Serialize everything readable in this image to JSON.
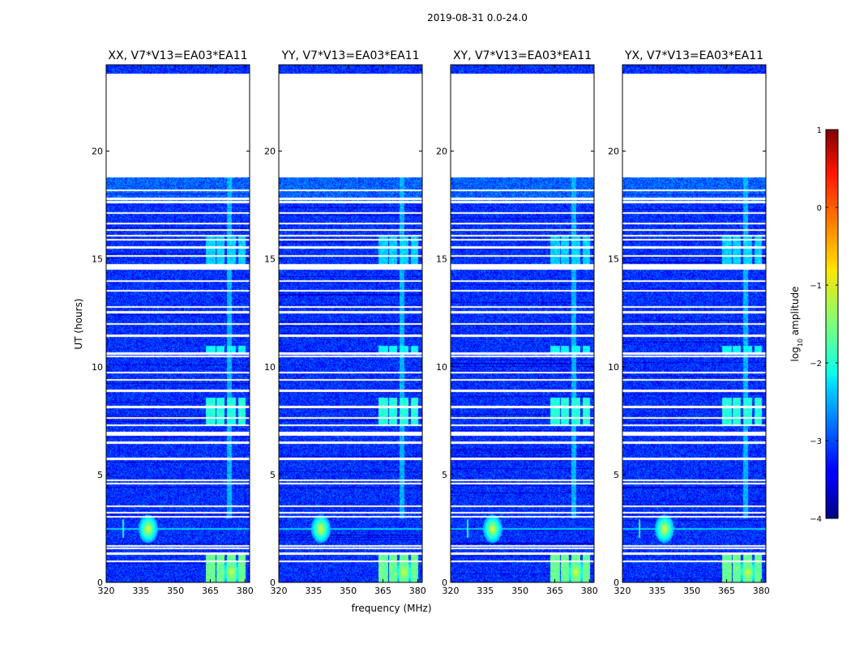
{
  "chart_data": {
    "type": "heatmap",
    "suptitle": "2019-08-31 0.0-24.0",
    "xlabel": "frequency (MHz)",
    "ylabel": "UT (hours)",
    "xlim": [
      320,
      382
    ],
    "ylim": [
      0,
      24
    ],
    "x_ticks": [
      "320",
      "335",
      "350",
      "365",
      "380"
    ],
    "x_tick_values": [
      320,
      335,
      350,
      365,
      380
    ],
    "y_ticks": [
      "0",
      "5",
      "10",
      "15",
      "20"
    ],
    "y_tick_values": [
      0,
      5,
      10,
      15,
      20
    ],
    "colormap": "jet",
    "colorbar": {
      "label": "log10 amplitude",
      "label_main": "log",
      "label_sub": "10",
      "label_rest": " amplitude",
      "range": [
        -4,
        1
      ],
      "tick_values": [
        1,
        0,
        -1,
        -2,
        -3,
        -4
      ],
      "ticks": [
        "1",
        "0",
        "−1",
        "−2",
        "−3",
        "−4"
      ]
    },
    "panels": [
      {
        "title": "XX, V7*V13=EA03*EA11",
        "pol": "XX",
        "cross": false
      },
      {
        "title": "YY, V7*V13=EA03*EA11",
        "pol": "YY",
        "cross": false
      },
      {
        "title": "XY, V7*V13=EA03*EA11",
        "pol": "XY",
        "cross": true
      },
      {
        "title": "YX, V7*V13=EA03*EA11",
        "pol": "YX",
        "cross": true
      }
    ],
    "data_gap_hours": [
      18.8,
      23.6
    ],
    "flagged_hours": [
      1.0,
      1.35,
      1.6,
      1.7,
      3.05,
      3.25,
      3.55,
      4.6,
      4.75,
      5.75,
      6.5,
      6.85,
      6.95,
      7.3,
      7.65,
      8.15,
      8.9,
      9.4,
      9.75,
      10.5,
      10.6,
      10.65,
      11.45,
      12.0,
      12.55,
      12.8,
      13.55,
      14.0,
      14.55,
      14.65,
      14.75,
      15.15,
      15.55,
      15.9,
      16.1,
      16.35,
      16.65,
      17.15,
      17.65,
      17.8,
      18.2
    ],
    "rfi_bands_mhz": [
      {
        "f0": 363,
        "f1": 367,
        "label": "365 MHz band"
      },
      {
        "f0": 367.5,
        "f1": 371,
        "label": "369 MHz band"
      },
      {
        "f0": 372,
        "f1": 376,
        "label": "374 MHz band"
      },
      {
        "f0": 377,
        "f1": 380,
        "label": "378 MHz band"
      }
    ],
    "rfi_bursts": [
      {
        "freq_mhz": 338,
        "hour": 2.5,
        "log_amplitude": -1.0
      },
      {
        "freq_mhz": 374,
        "hour": 0.5,
        "log_amplitude": -1.0
      }
    ]
  }
}
